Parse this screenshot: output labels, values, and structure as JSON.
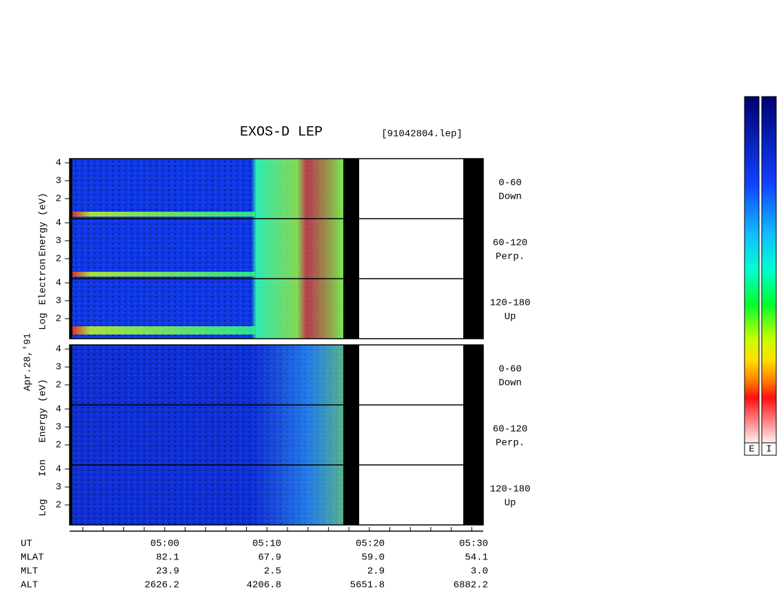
{
  "header": {
    "title": "EXOS-D LEP",
    "file": "[91042804.lep]"
  },
  "date": "Apr.28,'91",
  "groups": [
    {
      "axis_label": [
        "Log",
        "Electron",
        "Energy (eV)"
      ],
      "panels": [
        {
          "ticks": [
            "4",
            "3",
            "2"
          ],
          "pitch": "0-60",
          "direction": "Down"
        },
        {
          "ticks": [
            "4",
            "3",
            "2"
          ],
          "pitch": "60-120",
          "direction": "Perp."
        },
        {
          "ticks": [
            "4",
            "3",
            "2"
          ],
          "pitch": "120-180",
          "direction": "Up"
        }
      ]
    },
    {
      "axis_label": [
        "Log",
        "Ion",
        "Energy (eV)"
      ],
      "panels": [
        {
          "ticks": [
            "4",
            "3",
            "2"
          ],
          "pitch": "0-60",
          "direction": "Down"
        },
        {
          "ticks": [
            "4",
            "3",
            "2"
          ],
          "pitch": "60-120",
          "direction": "Perp."
        },
        {
          "ticks": [
            "4",
            "3",
            "2"
          ],
          "pitch": "120-180",
          "direction": "Up"
        }
      ]
    }
  ],
  "table": {
    "rows": [
      [
        "UT",
        "05:00",
        "05:10",
        "05:20",
        "05:30"
      ],
      [
        "MLAT",
        "82.1",
        "67.9",
        "59.0",
        "54.1"
      ],
      [
        "MLT",
        "23.9",
        "2.5",
        "2.9",
        "3.0"
      ],
      [
        "ALT",
        "2626.2",
        "4206.8",
        "5651.8",
        "6882.2"
      ]
    ]
  },
  "colorbars": [
    "E",
    "I"
  ]
}
